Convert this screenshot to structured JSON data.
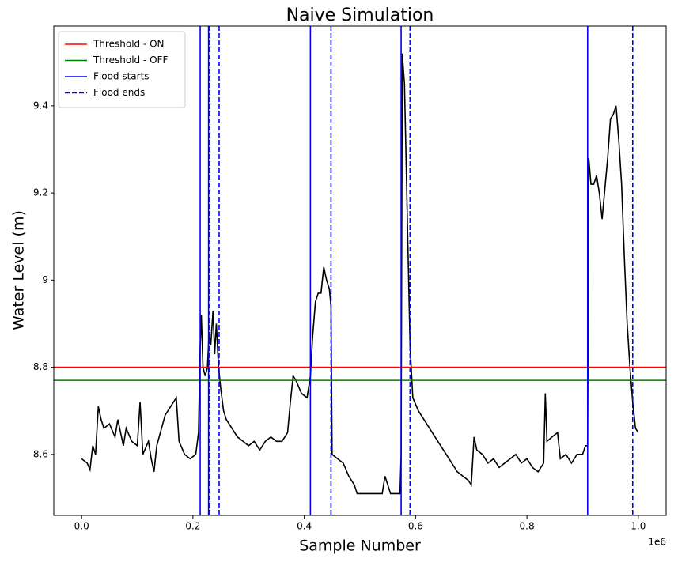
{
  "chart_data": {
    "type": "line",
    "title": "Naive Simulation",
    "x_label": "Sample Number",
    "y_label": "Water Level (m)",
    "x_offset_label": "1e6",
    "xlim": [
      -50000,
      1050000
    ],
    "ylim": [
      8.46,
      9.583
    ],
    "xticks": [
      {
        "value": 0,
        "label": "0.0"
      },
      {
        "value": 200000,
        "label": "0.2"
      },
      {
        "value": 400000,
        "label": "0.4"
      },
      {
        "value": 600000,
        "label": "0.6"
      },
      {
        "value": 800000,
        "label": "0.8"
      },
      {
        "value": 1000000,
        "label": "1.0"
      }
    ],
    "yticks": [
      8.6,
      8.8,
      9.0,
      9.2,
      9.4
    ],
    "legend": "upper left",
    "series": [
      {
        "name": "Threshold - ON",
        "color": "#ff0000",
        "kind": "hline",
        "values": [
          8.8
        ]
      },
      {
        "name": "Threshold - OFF",
        "color": "#008000",
        "kind": "hline",
        "values": [
          8.77
        ]
      },
      {
        "name": "Flood starts",
        "color": "#0000ff",
        "kind": "vline",
        "dashed": false,
        "x": [
          213000,
          228000,
          411000,
          574000,
          909000
        ]
      },
      {
        "name": "Flood ends",
        "color": "#0000ff",
        "kind": "vline",
        "dashed": true,
        "x": [
          230000,
          247000,
          448000,
          590000,
          990000
        ]
      }
    ],
    "line": {
      "color": "#000000",
      "x": [
        0,
        10000,
        15000,
        20000,
        25000,
        30000,
        35000,
        40000,
        50000,
        60000,
        65000,
        75000,
        80000,
        90000,
        100000,
        105000,
        110000,
        120000,
        125000,
        130000,
        135000,
        150000,
        160000,
        170000,
        175000,
        185000,
        195000,
        205000,
        210000,
        213000,
        215000,
        218000,
        222000,
        226000,
        229000,
        232000,
        236000,
        239000,
        242000,
        246000,
        250000,
        255000,
        260000,
        270000,
        280000,
        290000,
        300000,
        310000,
        320000,
        330000,
        340000,
        350000,
        360000,
        370000,
        375000,
        380000,
        385000,
        395000,
        405000,
        411000,
        415000,
        420000,
        425000,
        430000,
        435000,
        440000,
        445000,
        448000,
        450000,
        460000,
        470000,
        480000,
        490000,
        495000,
        510000,
        520000,
        530000,
        540000,
        545000,
        550000,
        555000,
        565000,
        572000,
        574000,
        576000,
        580000,
        585000,
        590000,
        595000,
        605000,
        615000,
        625000,
        635000,
        645000,
        655000,
        665000,
        675000,
        685000,
        695000,
        700000,
        705000,
        710000,
        720000,
        730000,
        740000,
        750000,
        760000,
        770000,
        780000,
        790000,
        800000,
        810000,
        820000,
        830000,
        833000,
        836000,
        845000,
        855000,
        860000,
        870000,
        880000,
        890000,
        900000,
        905000,
        909000,
        911000,
        915000,
        920000,
        925000,
        930000,
        935000,
        940000,
        945000,
        950000,
        955000,
        960000,
        965000,
        970000,
        975000,
        980000,
        985000,
        990000,
        995000,
        1000000
      ],
      "values": [
        8.59,
        8.58,
        8.565,
        8.62,
        8.6,
        8.71,
        8.68,
        8.66,
        8.67,
        8.64,
        8.68,
        8.62,
        8.66,
        8.63,
        8.62,
        8.72,
        8.6,
        8.63,
        8.59,
        8.56,
        8.62,
        8.69,
        8.71,
        8.73,
        8.63,
        8.6,
        8.59,
        8.6,
        8.65,
        8.85,
        8.92,
        8.8,
        8.78,
        8.8,
        8.88,
        8.85,
        8.93,
        8.83,
        8.9,
        8.8,
        8.75,
        8.7,
        8.68,
        8.66,
        8.64,
        8.63,
        8.62,
        8.63,
        8.61,
        8.63,
        8.64,
        8.63,
        8.63,
        8.65,
        8.72,
        8.78,
        8.77,
        8.74,
        8.73,
        8.78,
        8.87,
        8.95,
        8.97,
        8.97,
        9.03,
        9.0,
        8.98,
        8.94,
        8.6,
        8.59,
        8.58,
        8.55,
        8.53,
        8.51,
        8.51,
        8.51,
        8.51,
        8.51,
        8.55,
        8.53,
        8.51,
        8.51,
        8.51,
        8.6,
        9.52,
        9.45,
        9.15,
        8.85,
        8.73,
        8.7,
        8.68,
        8.66,
        8.64,
        8.62,
        8.6,
        8.58,
        8.56,
        8.55,
        8.54,
        8.53,
        8.64,
        8.61,
        8.6,
        8.58,
        8.59,
        8.57,
        8.58,
        8.59,
        8.6,
        8.58,
        8.59,
        8.57,
        8.56,
        8.58,
        8.74,
        8.63,
        8.64,
        8.65,
        8.59,
        8.6,
        8.58,
        8.6,
        8.6,
        8.62,
        8.62,
        9.28,
        9.22,
        9.22,
        9.24,
        9.2,
        9.14,
        9.21,
        9.28,
        9.37,
        9.38,
        9.4,
        9.32,
        9.22,
        9.05,
        8.9,
        8.8,
        8.72,
        8.66,
        8.65
      ]
    }
  }
}
